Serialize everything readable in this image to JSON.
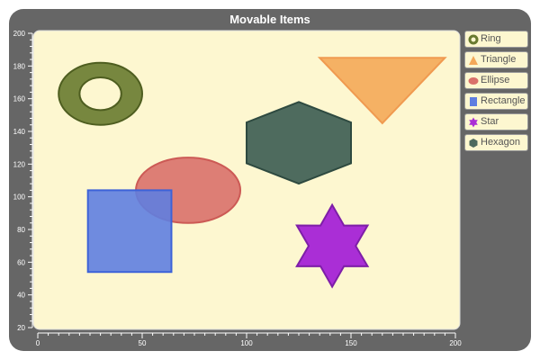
{
  "window": {
    "title": "Movable Items"
  },
  "chart_data": {
    "type": "scatter",
    "title": "Movable Items",
    "xlim": [
      0,
      200
    ],
    "ylim": [
      20,
      200
    ],
    "x_ticks": [
      0,
      50,
      100,
      150,
      200
    ],
    "y_ticks": [
      20,
      40,
      60,
      80,
      100,
      120,
      140,
      160,
      180,
      200
    ],
    "background": "#fdf7d0",
    "items": [
      {
        "name": "Ring",
        "shape": "ring",
        "cx": 30,
        "cy": 163,
        "rx": 20,
        "ry": 19,
        "inner_rx": 10,
        "inner_ry": 10,
        "fill": "#687a2f",
        "stroke": "#4e5e20"
      },
      {
        "name": "Triangle",
        "shape": "triangle",
        "points": [
          [
            135,
            185
          ],
          [
            195,
            185
          ],
          [
            165,
            145
          ]
        ],
        "fill": "#f4a858",
        "stroke": "#f09a50"
      },
      {
        "name": "Ellipse",
        "shape": "ellipse",
        "cx": 72,
        "cy": 104,
        "rx": 25,
        "ry": 20,
        "fill": "#d9706a",
        "stroke": "#cc5a55"
      },
      {
        "name": "Rectangle",
        "shape": "rect",
        "x0": 24,
        "y0": 54,
        "x1": 64,
        "y1": 104,
        "fill": "#5f7ee0",
        "stroke": "#3d62d8"
      },
      {
        "name": "Star",
        "shape": "star",
        "cx": 141,
        "cy": 70,
        "r": 25,
        "fill": "#aa2ed6",
        "stroke": "#7e1ea8"
      },
      {
        "name": "Hexagon",
        "shape": "hexagon",
        "cx": 125,
        "cy": 133,
        "r": 25,
        "fill": "#4e6b5e",
        "stroke": "#2e4a40"
      }
    ]
  },
  "legend": {
    "items": [
      {
        "label": "Ring",
        "icon": "ring-icon",
        "color": "#687a2f"
      },
      {
        "label": "Triangle",
        "icon": "triangle-icon",
        "color": "#f4a858"
      },
      {
        "label": "Ellipse",
        "icon": "ellipse-icon",
        "color": "#d9706a"
      },
      {
        "label": "Rectangle",
        "icon": "rectangle-icon",
        "color": "#5f7ee0"
      },
      {
        "label": "Star",
        "icon": "star-icon",
        "color": "#aa2ed6"
      },
      {
        "label": "Hexagon",
        "icon": "hexagon-icon",
        "color": "#4e6b5e"
      }
    ]
  }
}
